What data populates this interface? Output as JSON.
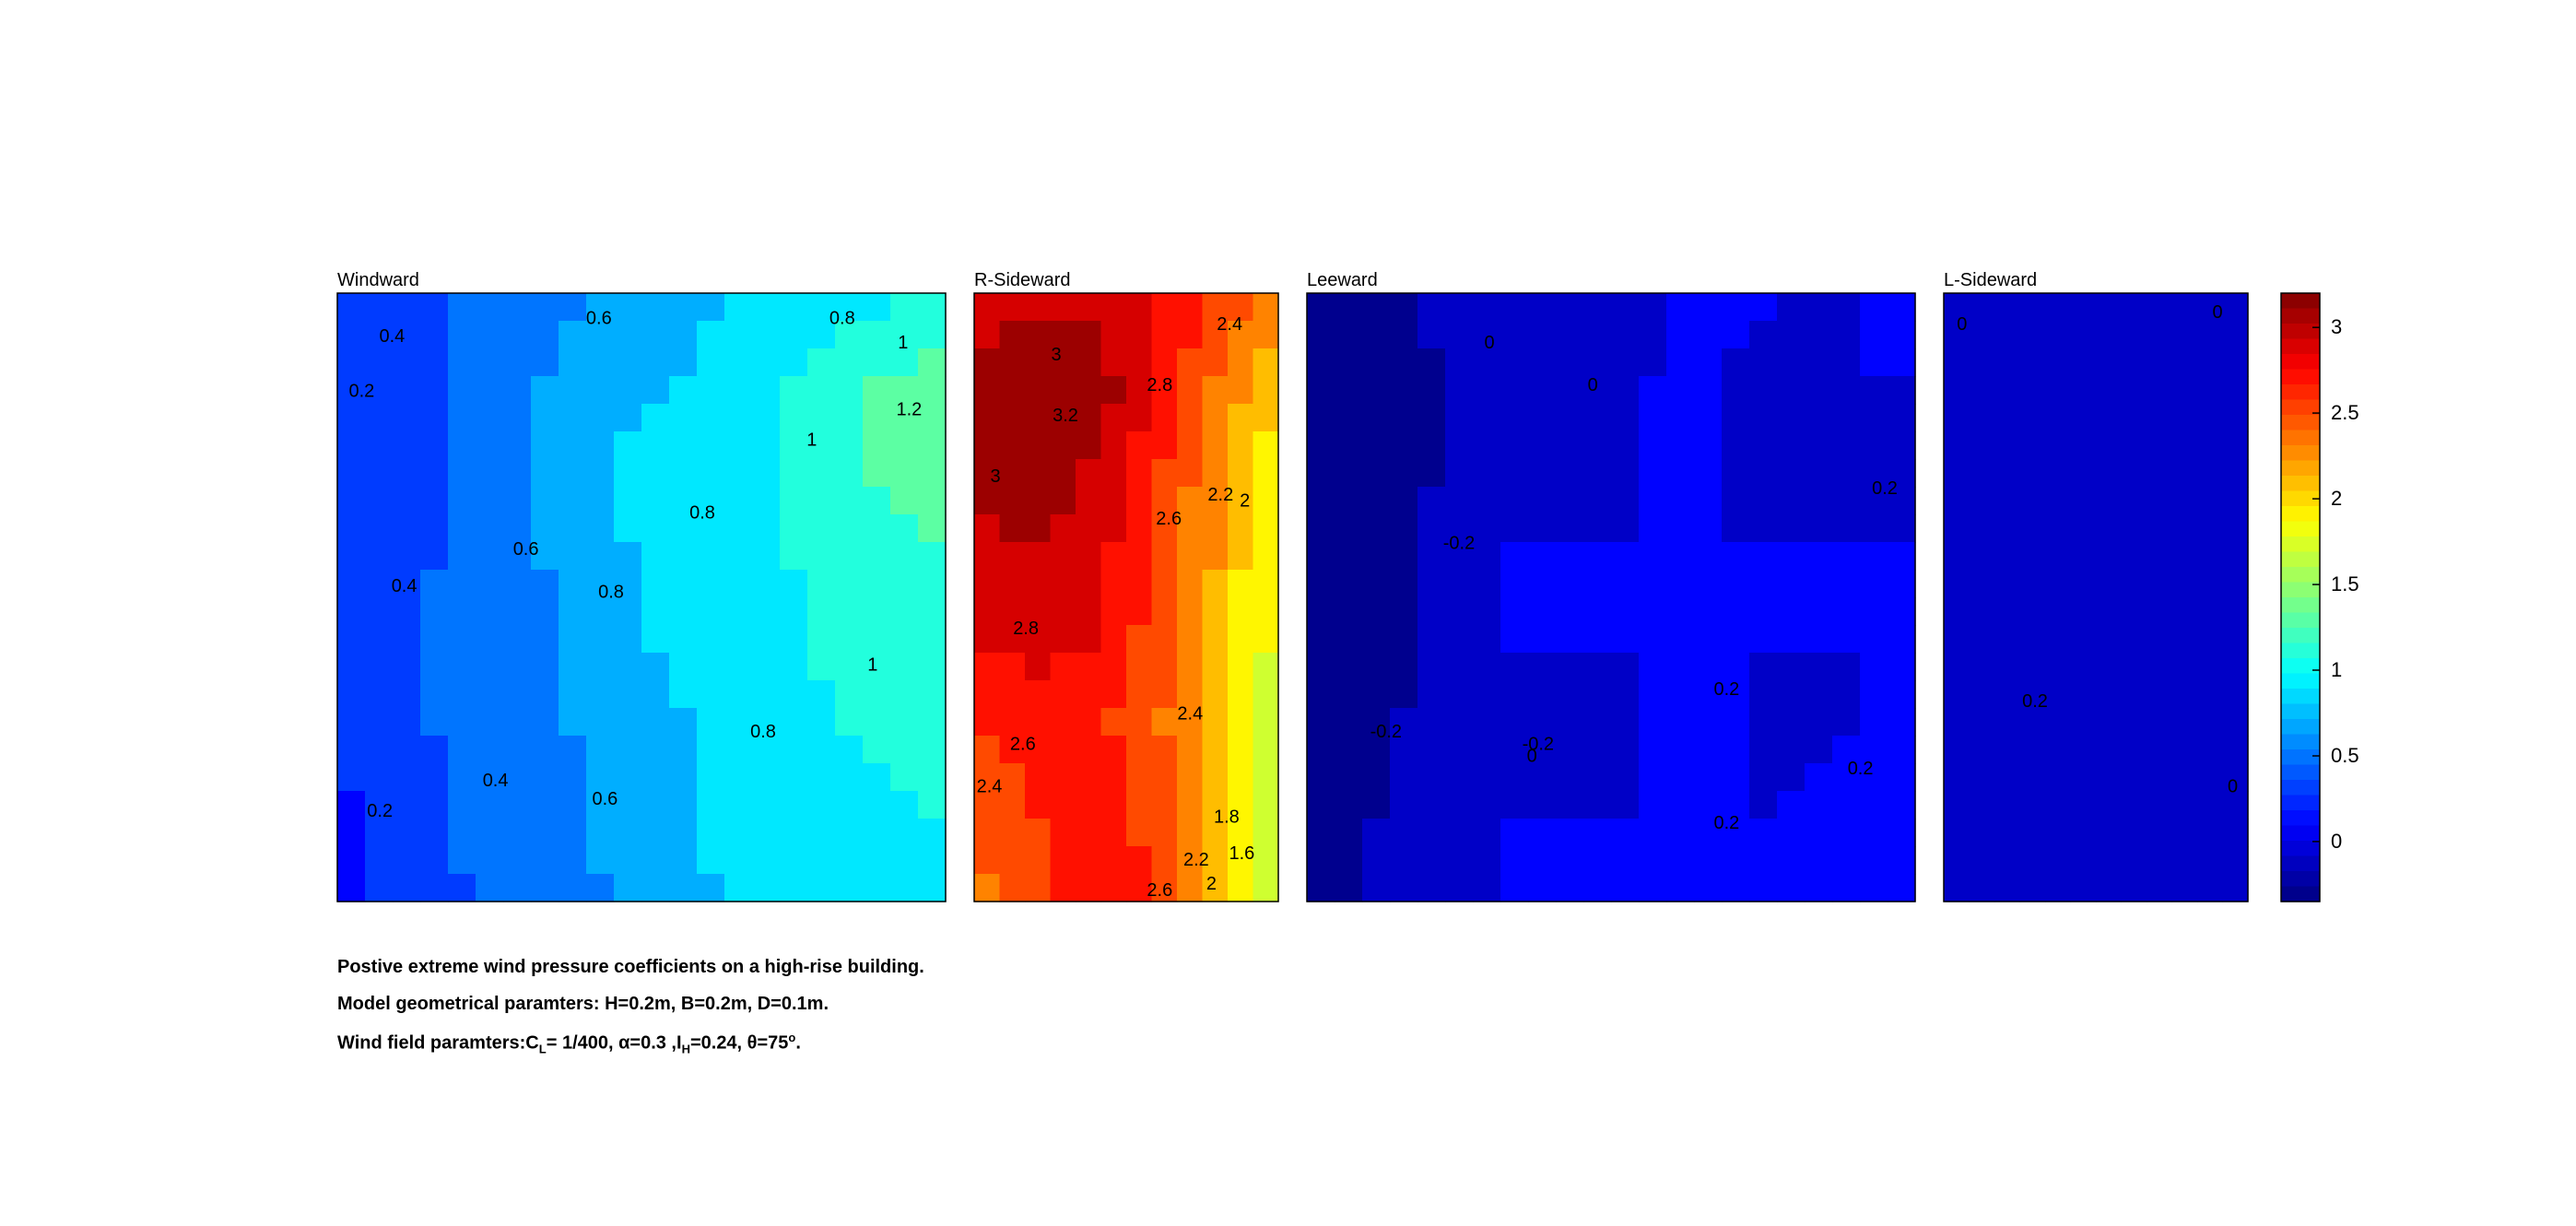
{
  "chart_data": {
    "type": "heatmap",
    "subtype": "filled-contour",
    "colormap": "jet",
    "panels": [
      {
        "title": "Windward",
        "grid": [
          [
            0.25,
            0.35,
            0.45,
            0.55,
            0.62,
            0.72,
            0.8,
            0.88,
            0.95,
            1.0
          ],
          [
            0.2,
            0.3,
            0.42,
            0.6,
            0.7,
            0.8,
            0.9,
            1.05,
            1.2,
            1.3
          ],
          [
            0.18,
            0.3,
            0.45,
            0.62,
            0.8,
            0.88,
            0.95,
            1.05,
            1.25,
            1.35
          ],
          [
            0.22,
            0.35,
            0.45,
            0.6,
            0.78,
            0.85,
            0.95,
            1.02,
            1.12,
            1.2
          ],
          [
            0.22,
            0.38,
            0.48,
            0.55,
            0.72,
            0.85,
            0.95,
            1.0,
            1.08,
            1.1
          ],
          [
            0.2,
            0.35,
            0.48,
            0.55,
            0.65,
            0.78,
            0.9,
            0.97,
            1.02,
            1.05
          ],
          [
            0.15,
            0.3,
            0.45,
            0.55,
            0.62,
            0.75,
            0.88,
            0.95,
            0.98,
            1.0
          ],
          [
            0.12,
            0.25,
            0.42,
            0.52,
            0.6,
            0.72,
            0.85,
            0.92,
            0.98,
            1.0
          ]
        ],
        "contour_labels": [
          "0.4",
          "0.6",
          "0.8",
          "1",
          "1.2",
          "0.2",
          "1",
          "0.8",
          "0.6",
          "0.8",
          "0.4",
          "1",
          "0.8",
          "0.4",
          "0.6",
          "0.2"
        ]
      },
      {
        "title": "R-Sideward",
        "grid": [
          [
            2.85,
            2.95,
            2.95,
            2.75,
            2.55,
            2.4
          ],
          [
            3.05,
            3.15,
            3.1,
            2.85,
            2.35,
            2.0
          ],
          [
            3.0,
            3.15,
            2.95,
            2.65,
            2.2,
            1.85
          ],
          [
            2.95,
            3.0,
            2.85,
            2.6,
            2.2,
            1.7
          ],
          [
            2.8,
            2.85,
            2.8,
            2.5,
            2.1,
            1.75
          ],
          [
            2.6,
            2.7,
            2.65,
            2.45,
            2.0,
            1.6
          ],
          [
            2.45,
            2.6,
            2.7,
            2.5,
            2.05,
            1.55
          ],
          [
            2.3,
            2.55,
            2.75,
            2.6,
            2.1,
            1.55
          ]
        ],
        "contour_labels": [
          "3",
          "2.4",
          "2.8",
          "3.2",
          "3",
          "2.2",
          "2",
          "2.6",
          "2.8",
          "2.4",
          "2.6",
          "2.4",
          "1.8",
          "2.2",
          "1.6",
          "2",
          "2.6"
        ]
      },
      {
        "title": "Leeward",
        "grid": [
          [
            -0.3,
            -0.3,
            -0.15,
            -0.2,
            -0.1,
            -0.05,
            0.05,
            0.0,
            0.0,
            0.0
          ],
          [
            -0.3,
            -0.25,
            -0.2,
            -0.15,
            -0.05,
            0.0,
            0.0,
            -0.05,
            0.0,
            0.0
          ],
          [
            -0.3,
            -0.3,
            -0.2,
            -0.05,
            -0.05,
            0.0,
            0.0,
            -0.05,
            -0.1,
            -0.05
          ],
          [
            -0.35,
            -0.3,
            -0.15,
            0.0,
            0.0,
            0.0,
            0.0,
            0.0,
            0.0,
            0.0
          ],
          [
            -0.35,
            -0.35,
            -0.15,
            0.0,
            0.0,
            0.0,
            0.0,
            0.0,
            0.0,
            0.0
          ],
          [
            -0.3,
            -0.25,
            -0.1,
            0.0,
            -0.05,
            0.0,
            0.05,
            -0.05,
            0.0,
            0.0
          ],
          [
            -0.3,
            -0.2,
            -0.05,
            0.0,
            0.0,
            0.0,
            0.0,
            0.0,
            0.05,
            0.05
          ],
          [
            -0.3,
            -0.2,
            -0.1,
            0.0,
            0.05,
            0.05,
            0.0,
            0.0,
            0.0,
            0.0
          ]
        ],
        "contour_labels": [
          "0",
          "0",
          "-0.2",
          "-0.2",
          "0.2",
          "-0.2",
          "0",
          "0.2",
          "0.2",
          "0.2"
        ]
      },
      {
        "title": "L-Sideward",
        "grid": [
          [
            -0.05,
            -0.1,
            -0.1,
            -0.1,
            -0.05
          ],
          [
            -0.15,
            -0.15,
            -0.15,
            -0.15,
            -0.1
          ],
          [
            -0.15,
            -0.15,
            -0.15,
            -0.15,
            -0.15
          ],
          [
            -0.15,
            -0.15,
            -0.15,
            -0.15,
            -0.15
          ],
          [
            -0.15,
            -0.15,
            -0.15,
            -0.15,
            -0.15
          ],
          [
            -0.1,
            -0.15,
            -0.15,
            -0.15,
            -0.1
          ],
          [
            -0.05,
            -0.1,
            -0.15,
            -0.1,
            -0.05
          ],
          [
            0.0,
            -0.05,
            -0.1,
            -0.05,
            0.0
          ]
        ],
        "contour_labels": [
          "0",
          "0",
          "0.2",
          "0"
        ]
      }
    ],
    "colorbar": {
      "range": [
        -0.35,
        3.2
      ],
      "ticks": [
        0,
        0.5,
        1,
        1.5,
        2,
        2.5,
        3
      ],
      "tick_labels": [
        "0",
        "0.5",
        "1",
        "1.5",
        "2",
        "2.5",
        "3"
      ]
    }
  },
  "caption": {
    "line1": "Postive extreme  wind pressure coefficients on a high-rise building.",
    "line2": "Model geometrical paramters: H=0.2m, B=0.2m, D=0.1m.",
    "line3_a": "Wind field paramters:C",
    "line3_b": "L",
    "line3_c": "= 1/400, α=0.3 ,I",
    "line3_d": "H",
    "line3_e": "=0.24, θ=75",
    "line3_f": "o",
    "line3_g": "."
  }
}
